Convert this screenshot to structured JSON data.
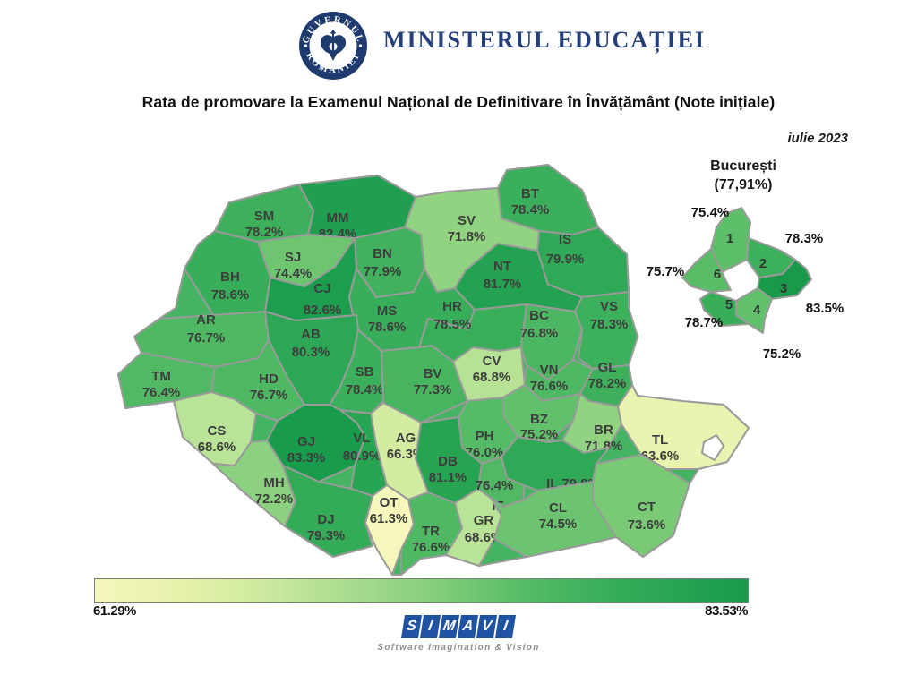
{
  "header": {
    "gov_logo": {
      "top_text": "GUVERNUL",
      "bottom_text": "ROMÂNIEI"
    },
    "ministry": "MINISTERUL EDUCAȚIEI"
  },
  "title": "Rata de promovare la Examenul Național de Definitivare în Învățământ (Note inițiale)",
  "date_label": "iulie 2023",
  "legend": {
    "min_label": "61.29%",
    "max_label": "83.53%"
  },
  "footer": {
    "logo_letters": [
      "S",
      "I",
      "M",
      "A",
      "V",
      "I"
    ],
    "tagline": "Software Imagination & Vision",
    "logo_color": "#2052a3"
  },
  "chart_data": {
    "type": "heatmap",
    "subtype": "choropleth-map",
    "region": "România",
    "title": "Rata de promovare la Examenul Național de Definitivare în Învățământ (Note inițiale)",
    "unit": "%",
    "value_range": [
      61.29,
      83.53
    ],
    "colormap": {
      "low": "#f5f7bb",
      "mid": "#82cd79",
      "high": "#189a4b"
    },
    "counties": [
      {
        "code": "SM",
        "value": 78.2
      },
      {
        "code": "MM",
        "value": 82.4
      },
      {
        "code": "BT",
        "value": 78.4
      },
      {
        "code": "SV",
        "value": 71.8
      },
      {
        "code": "IS",
        "value": 79.9
      },
      {
        "code": "BN",
        "value": 77.9
      },
      {
        "code": "NT",
        "value": 81.7
      },
      {
        "code": "SJ",
        "value": 74.4
      },
      {
        "code": "BH",
        "value": 78.6
      },
      {
        "code": "CJ",
        "value": 82.6
      },
      {
        "code": "MS",
        "value": 78.6
      },
      {
        "code": "HR",
        "value": 78.5
      },
      {
        "code": "BC",
        "value": 76.8
      },
      {
        "code": "VS",
        "value": 78.3
      },
      {
        "code": "AR",
        "value": 76.7
      },
      {
        "code": "AB",
        "value": 80.3
      },
      {
        "code": "TM",
        "value": 76.4
      },
      {
        "code": "HD",
        "value": 76.7
      },
      {
        "code": "SB",
        "value": 78.4
      },
      {
        "code": "BV",
        "value": 77.3
      },
      {
        "code": "CV",
        "value": 68.8
      },
      {
        "code": "VN",
        "value": 76.6
      },
      {
        "code": "GL",
        "value": 78.2
      },
      {
        "code": "CS",
        "value": 68.6
      },
      {
        "code": "GJ",
        "value": 83.3
      },
      {
        "code": "VL",
        "value": 80.9
      },
      {
        "code": "AG",
        "value": 66.3
      },
      {
        "code": "PH",
        "value": 76.0
      },
      {
        "code": "DB",
        "value": 81.1
      },
      {
        "code": "BZ",
        "value": 75.2
      },
      {
        "code": "BR",
        "value": 71.8
      },
      {
        "code": "TL",
        "value": 63.6
      },
      {
        "code": "MH",
        "value": 72.2
      },
      {
        "code": "OT",
        "value": 61.3
      },
      {
        "code": "DJ",
        "value": 79.3
      },
      {
        "code": "TR",
        "value": 76.6
      },
      {
        "code": "GR",
        "value": 68.6
      },
      {
        "code": "IF",
        "value": 76.4
      },
      {
        "code": "IL",
        "value": 79.8
      },
      {
        "code": "CL",
        "value": 74.5
      },
      {
        "code": "CT",
        "value": 73.6
      }
    ],
    "bucharest": {
      "name": "București",
      "overall_label": "(77,91%)",
      "overall_value": 77.91,
      "sectors": [
        {
          "sector": 1,
          "value": 75.4
        },
        {
          "sector": 2,
          "value": 78.3
        },
        {
          "sector": 3,
          "value": 83.5
        },
        {
          "sector": 4,
          "value": 75.2
        },
        {
          "sector": 5,
          "value": 78.7
        },
        {
          "sector": 6,
          "value": 75.7
        }
      ]
    }
  }
}
